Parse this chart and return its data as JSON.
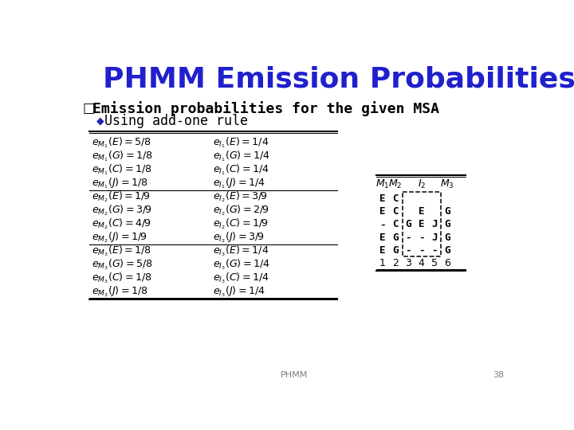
{
  "title": "PHMM Emission Probabilities",
  "title_color": "#2020CC",
  "bg_color": "#FFFFFF",
  "bullet1": "Emission probabilities for the given MSA",
  "bullet2": "Using add-one rule",
  "footer": "PHMM",
  "page_num": "38",
  "left_col": [
    "$e_{M_1}(E) = 5/8$",
    "$e_{M_1}(G) = 1/8$",
    "$e_{M_1}(C) = 1/8$",
    "$e_{M_1}(J) = 1/8$",
    "$e_{M_2}(E) = 1/9$",
    "$e_{M_2}(G) = 3/9$",
    "$e_{M_2}(C) = 4/9$",
    "$e_{M_2}(J) = 1/9$",
    "$e_{M_3}(E) = 1/8$",
    "$e_{M_3}(G) = 5/8$",
    "$e_{M_3}(C) = 1/8$",
    "$e_{M_3}(J) = 1/8$"
  ],
  "right_col": [
    "$e_{I_1}(E) = 1/4$",
    "$e_{I_1}(G) = 1/4$",
    "$e_{I_1}(C) = 1/4$",
    "$e_{I_1}(J) = 1/4$",
    "$e_{I_2}(E) = 3/9$",
    "$e_{I_2}(G) = 2/9$",
    "$e_{I_2}(C) = 1/9$",
    "$e_{I_2}(J) = 3/9$",
    "$e_{I_3}(E) = 1/4$",
    "$e_{I_3}(G) = 1/4$",
    "$e_{I_3}(C) = 1/4$",
    "$e_{I_3}(J) = 1/4$"
  ],
  "group_separators": [
    0,
    4,
    8,
    12
  ],
  "msa_header_labels": [
    "$M_1$",
    "$M_2$",
    "",
    "$I_2$",
    "",
    "$M_3$"
  ],
  "msa_rows": [
    [
      "E",
      "C",
      "",
      "",
      "",
      ""
    ],
    [
      "E",
      "C",
      "",
      "E",
      "",
      "G"
    ],
    [
      "-",
      "C",
      "G",
      "E",
      "J",
      "G"
    ],
    [
      "E",
      "G",
      "-",
      "-",
      "J",
      "G"
    ],
    [
      "E",
      "G",
      "-",
      "-",
      "-",
      "G"
    ]
  ],
  "msa_col_nums": [
    "1",
    "2",
    "3",
    "4",
    "5",
    "6"
  ]
}
